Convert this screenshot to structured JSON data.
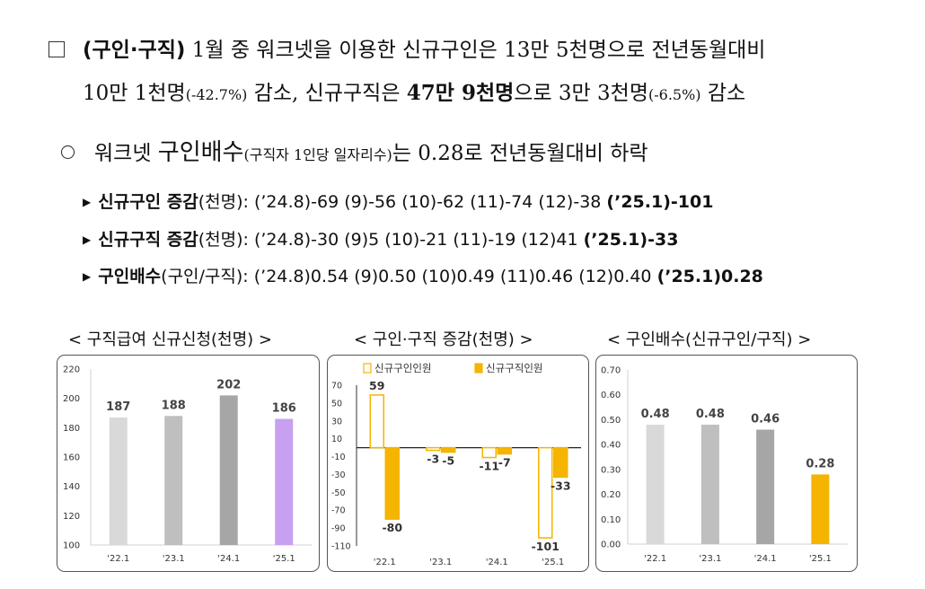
{
  "para1": {
    "tag": "(구인·구직)",
    "line1_text": " 1월 중 워크넷을 이용한 신규구인은 13만 5천명으로 전년동월대비",
    "line2_a": "10만 1천명",
    "line2_pct": "(-42.7%)",
    "line2_b": " 감소, 신규구직은 ",
    "line2_bold": "47만 9천명",
    "line2_c": "으로 3만 3천명",
    "line2_pct2": "(-6.5%)",
    "line2_d": " 감소"
  },
  "para2": {
    "a": "워크넷 ",
    "big": "구인배수",
    "paren": "(구직자 1인당 일자리수)",
    "b": "는 ",
    "val": "0.28",
    "c": "로 전년동월대비 ",
    "d": "하락"
  },
  "bullets": [
    {
      "bold": "신규구인 증감",
      "normal": "(천명): (’24.8)-69 (9)-56 (10)-62 (11)-74 (12)-38 ",
      "last": "(’25.1)-101"
    },
    {
      "bold": "신규구직 증감",
      "normal": "(천명): (’24.8)-30 (9)5 (10)-21 (11)-19 (12)41 ",
      "last": "(’25.1)-33"
    },
    {
      "bold": "구인배수",
      "normal": "(구인/구직): (’24.8)0.54 (9)0.50 (10)0.49 (11)0.46 (12)0.40 ",
      "last": "(’25.1)0.28"
    }
  ],
  "chart_titles": [
    "< 구직급여 신규신청(천명) >",
    "< 구인·구직 증감(천명) >",
    "< 구인배수(신규구인/구직) >"
  ],
  "chart_data": [
    {
      "type": "bar",
      "categories": [
        "'22.1",
        "'23.1",
        "'24.1",
        "'25.1"
      ],
      "values": [
        187,
        188,
        202,
        186
      ],
      "labels": [
        "187",
        "188",
        "202",
        "186"
      ],
      "ylim": [
        100,
        220
      ],
      "yticks": [
        "100",
        "120",
        "140",
        "160",
        "180",
        "200",
        "220"
      ],
      "colors": [
        "#d9d9d9",
        "#bfbfbf",
        "#a6a6a6",
        "#c8a0f0"
      ],
      "grid": false
    },
    {
      "type": "bar",
      "categories": [
        "'22.1",
        "'23.1",
        "'24.1",
        "'25.1"
      ],
      "series": [
        {
          "name": "신규구인인원",
          "values": [
            59,
            -3,
            -11,
            -101
          ],
          "labels": [
            "59",
            "-3",
            "-11",
            "-101"
          ],
          "fill": "#ffffff",
          "stroke": "#f5b400"
        },
        {
          "name": "신규구직인원",
          "values": [
            -80,
            -5,
            -7,
            -33
          ],
          "labels": [
            "-80",
            "-5",
            "-7",
            "-33"
          ],
          "fill": "#f5b400",
          "stroke": "#f5b400"
        }
      ],
      "ylim": [
        -110,
        70
      ],
      "yticks": [
        "70",
        "50",
        "30",
        "10",
        "-10",
        "-30",
        "-50",
        "-70",
        "-90",
        "-110"
      ],
      "legend": "top-left"
    },
    {
      "type": "bar",
      "categories": [
        "'22.1",
        "'23.1",
        "'24.1",
        "'25.1"
      ],
      "values": [
        0.48,
        0.48,
        0.46,
        0.28
      ],
      "labels": [
        "0.48",
        "0.48",
        "0.46",
        "0.28"
      ],
      "ylim": [
        0,
        0.7
      ],
      "yticks": [
        "0.00",
        "0.10",
        "0.20",
        "0.30",
        "0.40",
        "0.50",
        "0.60",
        "0.70"
      ],
      "colors": [
        "#d9d9d9",
        "#bfbfbf",
        "#a6a6a6",
        "#f5b400"
      ],
      "grid": false
    }
  ]
}
